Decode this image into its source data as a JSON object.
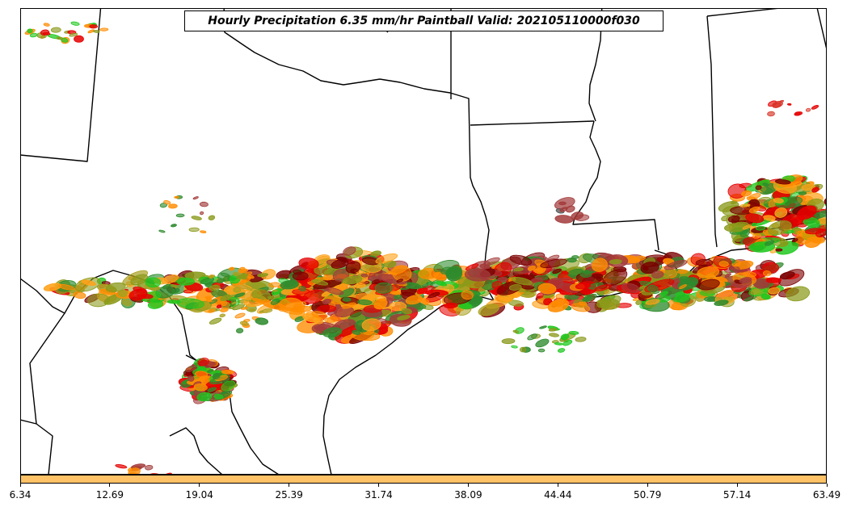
{
  "title": "Hourly Precipitation 6.35 mm/hr Paintball Valid: 202105110000f030",
  "colorbar": {
    "color": "#ffc266",
    "ticks": [
      "6.34",
      "12.69",
      "19.04",
      "25.39",
      "31.74",
      "38.09",
      "44.44",
      "50.79",
      "57.14",
      "63.49"
    ]
  },
  "member_colors": [
    "#e60000",
    "#ff8c00",
    "#ffa31a",
    "#7a0000",
    "#a33b3b",
    "#1ec81e",
    "#2e8b2e",
    "#8a9a1a",
    "#a8a020",
    "#d8382b",
    "#505050"
  ]
}
